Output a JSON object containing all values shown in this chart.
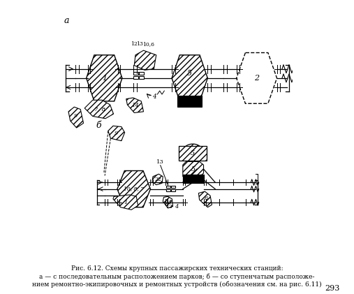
{
  "title_a": "а",
  "title_b": "б",
  "caption_line1": "Рис. 6.12. Схемы крупных пассажирских технических станций:",
  "caption_line2": "а — с последовательным расположением парков; б — со ступенчатым расположе-",
  "caption_line3": "нием ремонтно-экипировочных и ремонтных устройств (обозначения см. на рис. 6.11)",
  "page_number": "293",
  "bg_color": "#ffffff",
  "hatch_color": "#222222",
  "line_color": "#111111"
}
